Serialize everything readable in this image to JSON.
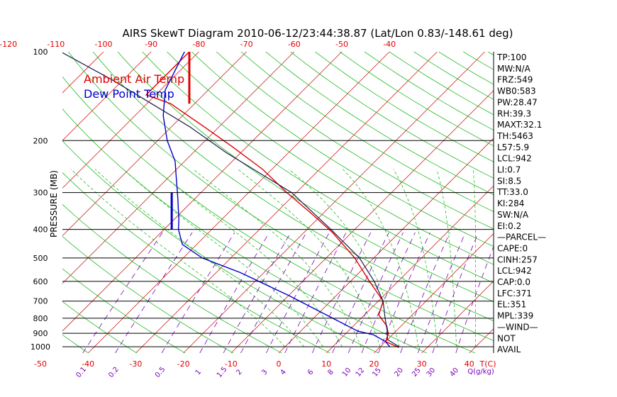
{
  "chart_data": {
    "type": "line",
    "title": "AIRS SkewT Diagram 2010-06-12/23:44:38.87 (Lat/Lon 0.83/-148.61 deg)",
    "ylabel": "PRESSURE (MB)",
    "x_unit": "T(C)",
    "mixing_ratio_unit": "Q(g/kg)",
    "pressure_ticks": [
      100,
      200,
      300,
      400,
      500,
      600,
      700,
      800,
      900,
      1000
    ],
    "top_temperature_ticks": [
      -120,
      -110,
      -100,
      -90,
      -80,
      -70,
      -60,
      -50,
      -40
    ],
    "bottom_temperature_ticks": [
      -50,
      -40,
      -30,
      -20,
      -10,
      0,
      10,
      20,
      30,
      40
    ],
    "mixing_ratio_labels": [
      "0.1",
      "0.2",
      "0.5",
      "1",
      "1.5",
      "2",
      "3",
      "4",
      "6",
      "8",
      "10",
      "12",
      "15",
      "20",
      "25",
      "30",
      "40"
    ],
    "legend": [
      "Ambient Air Temp",
      "Dew Point Temp"
    ],
    "colors": {
      "ambient": "#e00000",
      "dewpoint": "#0000cc",
      "isotherm": "#d02020",
      "dry_adiabat": "#22bb22",
      "moist_adiabat": "#22bb22",
      "mixing_ratio": "#7a00b8",
      "parcel": "#1a1a4a"
    },
    "series": [
      {
        "name": "Ambient Air Temp",
        "points": [
          [
            24,
            1005
          ],
          [
            20,
            960
          ],
          [
            19,
            905
          ],
          [
            17,
            850
          ],
          [
            13,
            780
          ],
          [
            11,
            700
          ],
          [
            4,
            600
          ],
          [
            -4,
            500
          ],
          [
            -14,
            410
          ],
          [
            -23,
            350
          ],
          [
            -32,
            300
          ],
          [
            -42,
            250
          ],
          [
            -53,
            210
          ],
          [
            -63,
            180
          ],
          [
            -75,
            150
          ],
          [
            -82,
            140
          ],
          [
            -82,
            100
          ]
        ]
      },
      {
        "name": "Dew Point Temp",
        "points": [
          [
            22,
            1000
          ],
          [
            20,
            960
          ],
          [
            16,
            910
          ],
          [
            12,
            885
          ],
          [
            2,
            780
          ],
          [
            -10,
            670
          ],
          [
            -25,
            560
          ],
          [
            -36,
            500
          ],
          [
            -43,
            450
          ],
          [
            -47,
            400
          ],
          [
            -49,
            370
          ],
          [
            -54,
            310
          ],
          [
            -58,
            270
          ],
          [
            -62,
            235
          ],
          [
            -68,
            200
          ],
          [
            -74,
            165
          ],
          [
            -79,
            135
          ],
          [
            -83,
            100
          ]
        ]
      },
      {
        "points": [
          [
            24,
            1000
          ],
          [
            20,
            945
          ],
          [
            18,
            880
          ],
          [
            15,
            800
          ],
          [
            11,
            700
          ],
          [
            5,
            600
          ],
          [
            -3,
            500
          ],
          [
            -15,
            400
          ],
          [
            -31,
            300
          ],
          [
            -53,
            220
          ],
          [
            -66,
            180
          ],
          [
            -79,
            150
          ],
          [
            -92,
            125
          ],
          [
            -109,
            100
          ]
        ]
      }
    ],
    "indices": [
      "TP:100",
      "MW:N/A",
      "FRZ:549",
      "WB0:583",
      "PW:28.47",
      "RH:39.3",
      "MAXT:32.1",
      "TH:5463",
      "L57:5.9",
      "LCL:942",
      "LI:0.7",
      "SI:8.5",
      "TT:33.0",
      "KI:284",
      "SW:N/A",
      "EI:0.2",
      "—PARCEL—",
      "CAPE:0",
      "CINH:257",
      "LCL:942",
      "CAP:0.0",
      "LFC:371",
      "EL:351",
      "MPL:339",
      "—WIND—",
      "NOT",
      "AVAIL"
    ]
  }
}
